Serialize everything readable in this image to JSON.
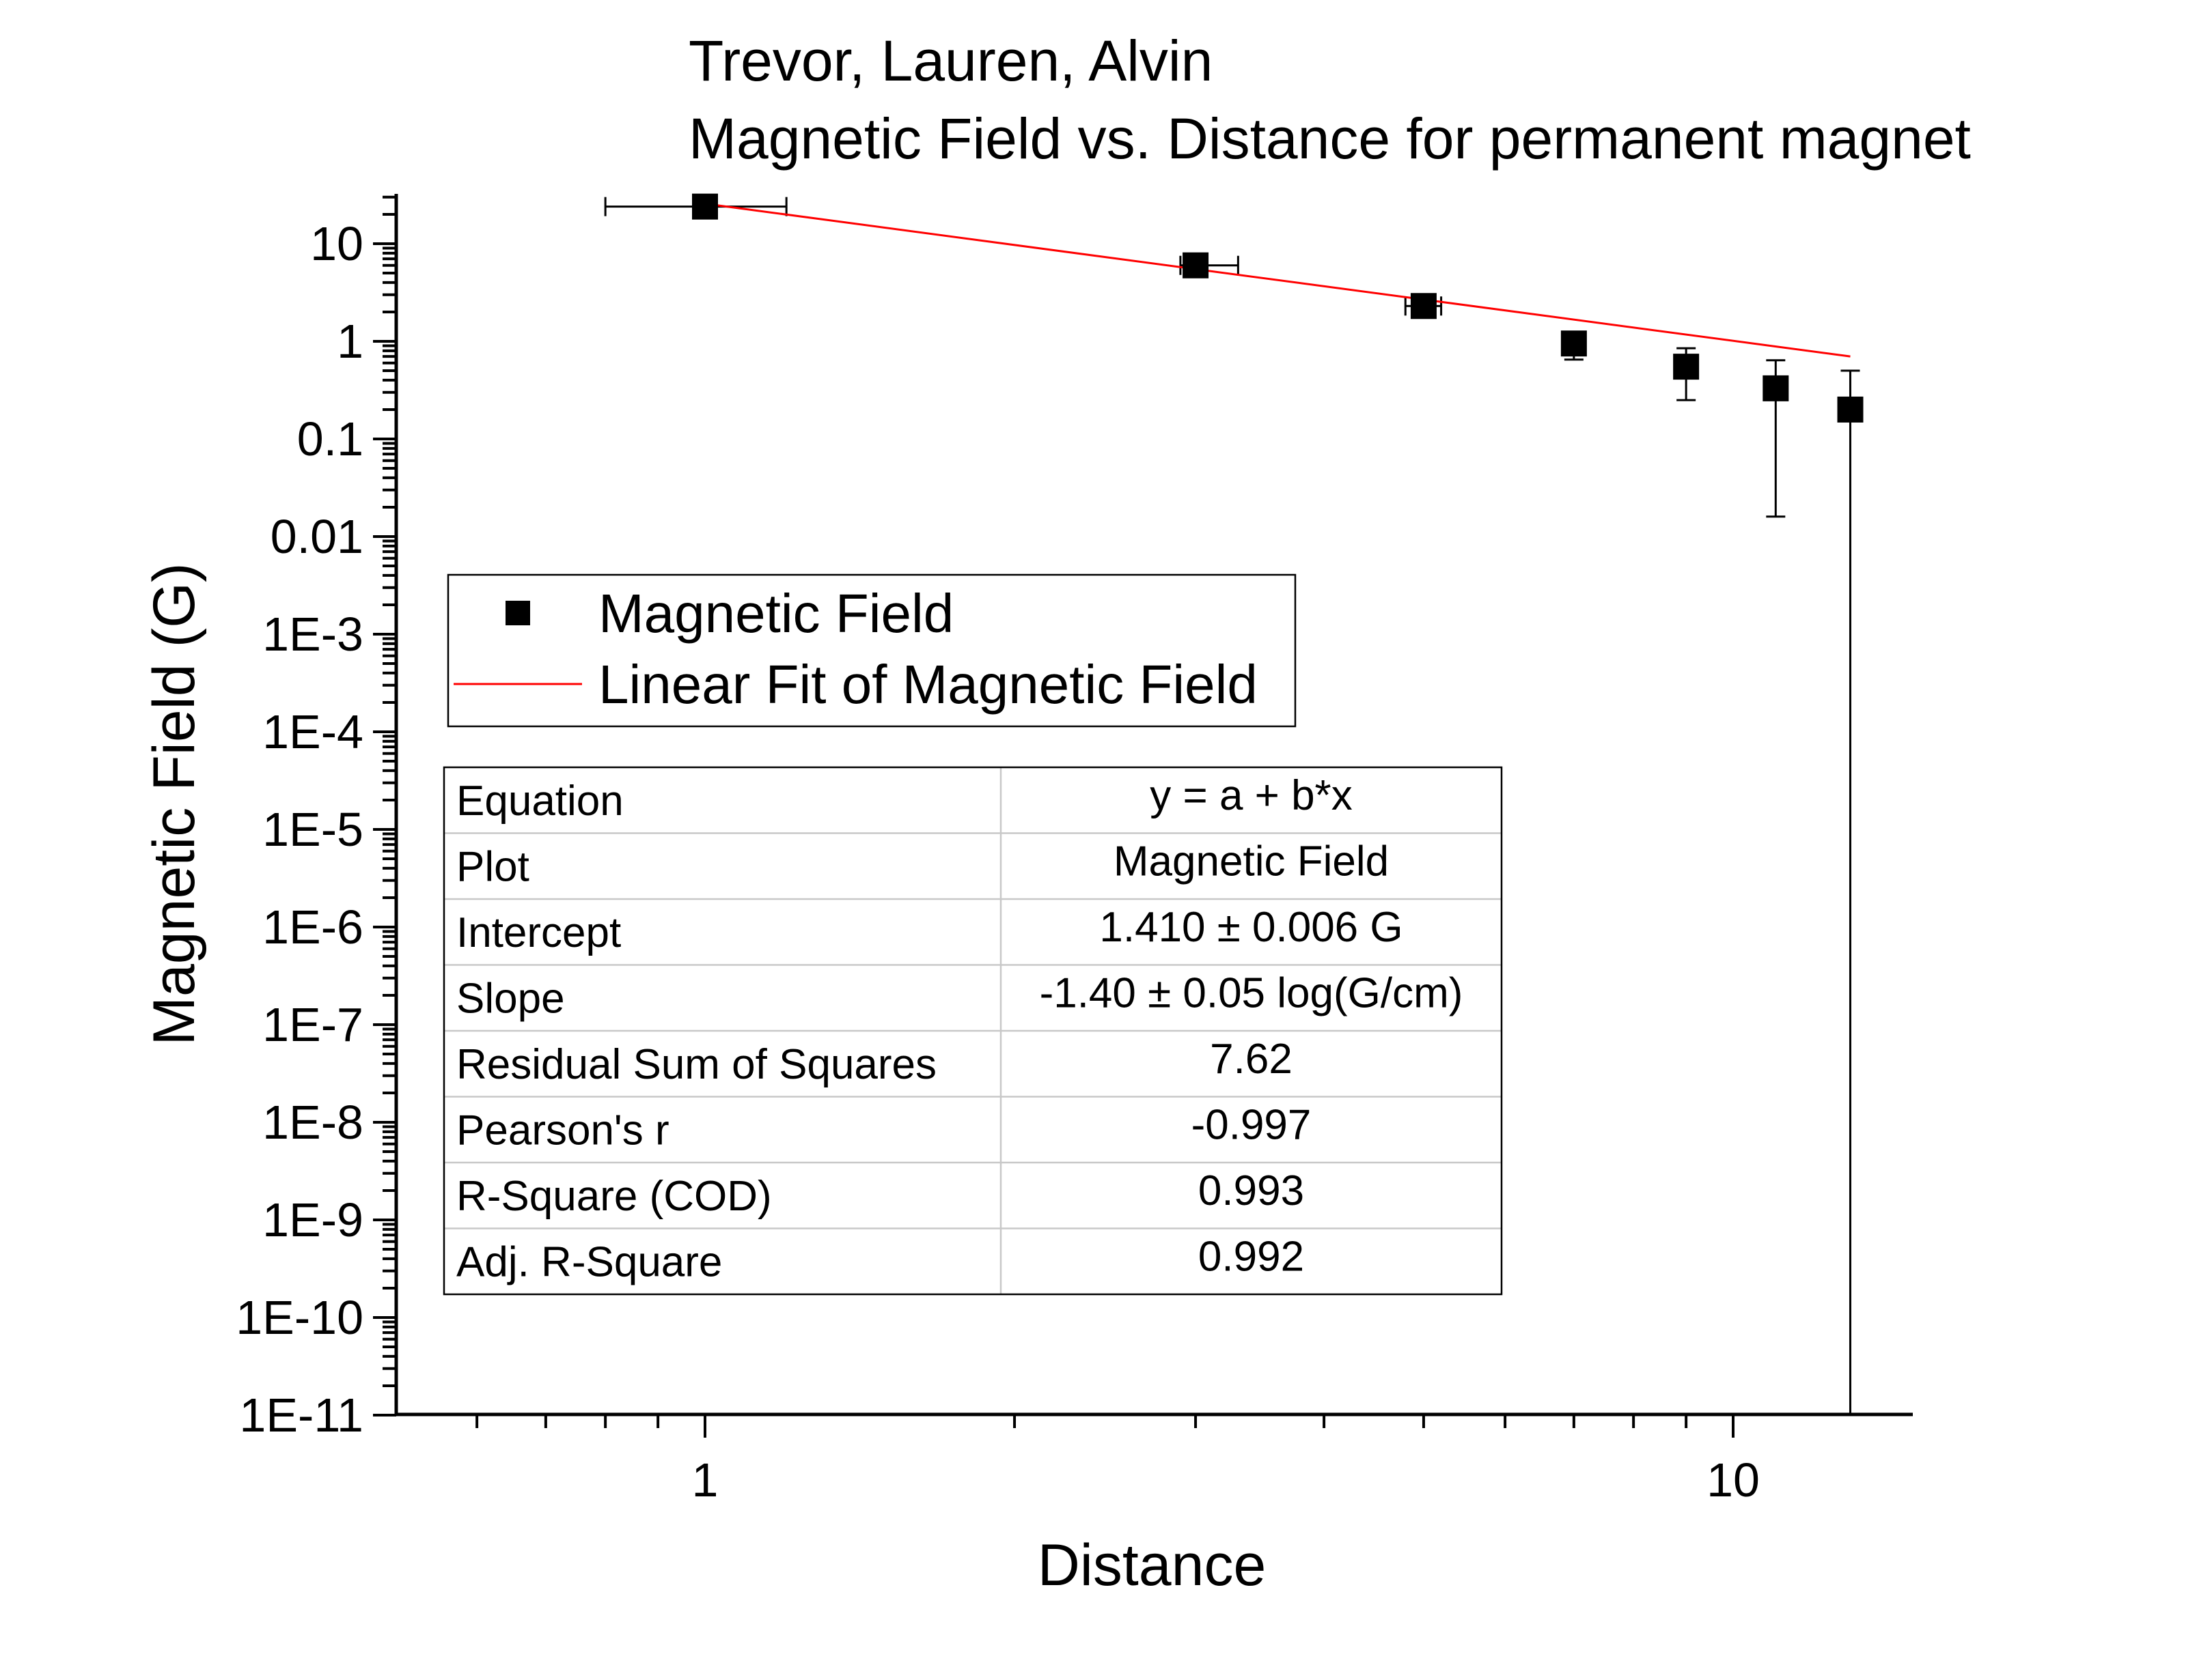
{
  "chart_data": {
    "type": "scatter",
    "title_lines": [
      "Trevor, Lauren, Alvin",
      "Magnetic Field vs. Distance for permanent magnet"
    ],
    "xlabel": "Distance",
    "ylabel": "Magnetic Field (G)",
    "x_scale": "log",
    "y_scale": "log",
    "xlim": [
      0.5,
      15
    ],
    "ylim": [
      1e-11,
      30
    ],
    "x_ticks": [
      {
        "value": 1,
        "label": "1"
      },
      {
        "value": 10,
        "label": "10"
      }
    ],
    "y_ticks": [
      {
        "value": 10,
        "label": "10"
      },
      {
        "value": 1,
        "label": "1"
      },
      {
        "value": 0.1,
        "label": "0.1"
      },
      {
        "value": 0.01,
        "label": "0.01"
      },
      {
        "value": 0.001,
        "label": "1E-3"
      },
      {
        "value": 0.0001,
        "label": "1E-4"
      },
      {
        "value": 1e-05,
        "label": "1E-5"
      },
      {
        "value": 1e-06,
        "label": "1E-6"
      },
      {
        "value": 1e-07,
        "label": "1E-7"
      },
      {
        "value": 1e-08,
        "label": "1E-8"
      },
      {
        "value": 1e-09,
        "label": "1E-9"
      },
      {
        "value": 1e-10,
        "label": "1E-10"
      },
      {
        "value": 1e-11,
        "label": "1E-11"
      }
    ],
    "grid": false,
    "series": [
      {
        "name": "Magnetic Field",
        "kind": "scatter",
        "marker": "square",
        "color": "#000000",
        "points": [
          {
            "x": 1.0,
            "y": 24.0,
            "y_lo": 24.0,
            "y_hi": 24.0,
            "x_lo": 0.8,
            "x_hi": 1.2
          },
          {
            "x": 3.0,
            "y": 6.0,
            "y_lo": 5.4,
            "y_hi": 6.6,
            "x_lo": 2.9,
            "x_hi": 3.3
          },
          {
            "x": 5.0,
            "y": 2.3,
            "y_lo": 1.95,
            "y_hi": 2.65,
            "x_lo": 4.8,
            "x_hi": 5.2
          },
          {
            "x": 7.0,
            "y": 0.95,
            "y_lo": 0.65,
            "y_hi": 1.25
          },
          {
            "x": 9.0,
            "y": 0.55,
            "y_lo": 0.25,
            "y_hi": 0.85
          },
          {
            "x": 11.0,
            "y": 0.33,
            "y_lo": 0.016,
            "y_hi": 0.64
          },
          {
            "x": 13.0,
            "y": 0.2,
            "y_lo": 1e-11,
            "y_hi": 0.5
          }
        ]
      },
      {
        "name": "Linear Fit of Magnetic Field",
        "kind": "line",
        "color": "#ff0000",
        "points": [
          {
            "x": 1.0,
            "y": 25.7
          },
          {
            "x": 13.0,
            "y": 0.7
          }
        ]
      }
    ],
    "legend": {
      "placement": "middle-left",
      "entries": [
        "Magnetic Field",
        "Linear Fit of Magnetic Field"
      ]
    },
    "stats_table": {
      "rows": [
        {
          "label": "Equation",
          "value": "y = a + b*x"
        },
        {
          "label": "Plot",
          "value": "Magnetic Field"
        },
        {
          "label": "Intercept",
          "value": "1.410 ± 0.006 G"
        },
        {
          "label": "Slope",
          "value": "-1.40 ± 0.05 log(G/cm)"
        },
        {
          "label": "Residual Sum of Squares",
          "value": "7.62"
        },
        {
          "label": "Pearson's r",
          "value": "-0.997"
        },
        {
          "label": "R-Square (COD)",
          "value": "0.993"
        },
        {
          "label": "Adj. R-Square",
          "value": "0.992"
        }
      ]
    }
  }
}
